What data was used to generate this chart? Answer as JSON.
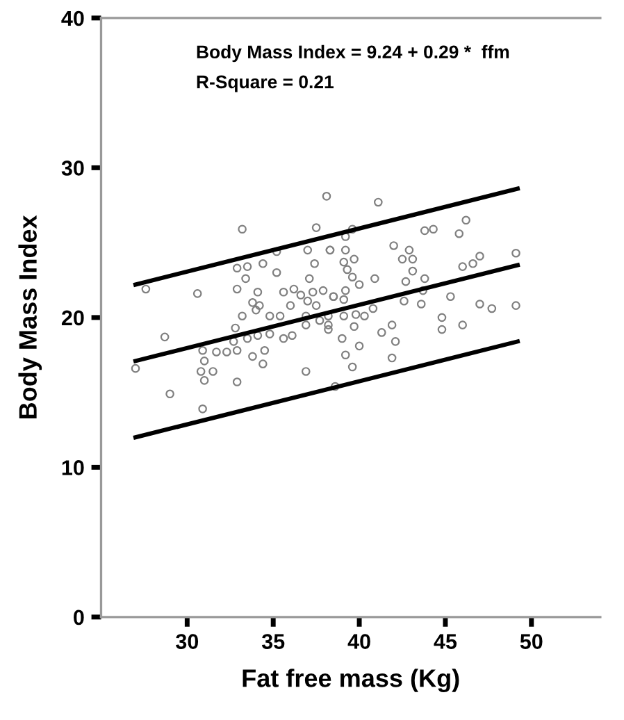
{
  "chart_data": {
    "type": "scatter",
    "xlabel": "Fat free mass (Kg)",
    "ylabel": "Body Mass Index",
    "annotations": [
      "Body Mass Index = 9.24 + 0.29 *  ffm",
      "R-Square = 0.21"
    ],
    "xlim": [
      25,
      54
    ],
    "ylim": [
      0,
      40
    ],
    "xticks": [
      30,
      35,
      40,
      45,
      50
    ],
    "yticks": [
      0,
      10,
      20,
      30,
      40
    ],
    "grid": false,
    "legend": false,
    "series": [
      {
        "color": "#808080",
        "marker": "circle",
        "x": [
          38.1,
          37.5,
          33.2,
          37.0,
          38.3,
          35.2,
          34.4,
          35.2,
          32.9,
          33.5,
          33.4,
          32.9,
          37.4,
          37.1,
          27.6,
          30.6,
          34.1,
          33.8,
          34.2,
          34.0,
          35.6,
          36.2,
          36.6,
          37.3,
          37.9,
          38.5,
          37.0,
          37.5,
          36.0,
          35.4,
          34.8,
          33.2,
          36.9,
          37.7,
          38.2,
          36.9,
          32.8,
          28.7,
          33.5,
          34.1,
          34.8,
          35.6,
          36.1,
          32.7,
          30.9,
          31.7,
          32.3,
          32.9,
          33.8,
          34.5,
          31.0,
          30.8,
          31.5,
          34.4,
          27.0,
          31.0,
          36.9,
          32.9,
          29.0,
          30.9,
          41.1,
          46.2,
          45.8,
          43.8,
          44.3,
          39.2,
          39.6,
          38.3,
          39.2,
          42.0,
          42.9,
          42.5,
          43.1,
          39.1,
          39.7,
          39.3,
          43.1,
          46.0,
          46.6,
          47.0,
          49.1,
          39.6,
          40.0,
          40.9,
          42.7,
          43.8,
          43.7,
          39.2,
          38.5,
          39.1,
          45.3,
          42.6,
          43.6,
          40.8,
          47.0,
          47.7,
          49.1,
          39.1,
          39.8,
          40.3,
          38.2,
          39.7,
          38.2,
          41.9,
          41.3,
          44.8,
          44.8,
          46.0,
          39.0,
          42.1,
          40.0,
          39.2,
          41.9,
          39.6,
          38.6
        ],
        "values": [
          28.1,
          26.0,
          25.9,
          24.5,
          24.5,
          24.4,
          23.6,
          23.0,
          23.3,
          23.4,
          22.6,
          21.9,
          23.6,
          22.6,
          21.9,
          21.6,
          21.7,
          21.0,
          20.8,
          20.5,
          21.7,
          21.9,
          21.5,
          21.7,
          21.8,
          21.4,
          21.1,
          20.8,
          20.8,
          20.1,
          20.1,
          20.1,
          20.1,
          19.8,
          19.5,
          19.5,
          19.3,
          18.7,
          18.6,
          18.8,
          18.9,
          18.6,
          18.8,
          18.4,
          17.8,
          17.7,
          17.7,
          17.8,
          17.4,
          17.8,
          17.1,
          16.4,
          16.4,
          16.9,
          16.6,
          15.8,
          16.4,
          15.7,
          14.9,
          13.9,
          27.7,
          26.5,
          25.6,
          25.8,
          25.9,
          25.4,
          25.9,
          24.5,
          24.5,
          24.8,
          24.5,
          23.9,
          23.9,
          23.7,
          23.9,
          23.2,
          23.1,
          23.4,
          23.6,
          24.1,
          24.3,
          22.7,
          22.2,
          22.6,
          22.4,
          22.6,
          21.8,
          21.8,
          21.4,
          21.2,
          21.4,
          21.1,
          20.9,
          20.6,
          20.9,
          20.6,
          20.8,
          20.1,
          20.2,
          20.1,
          20.1,
          19.4,
          19.2,
          19.5,
          19.0,
          20.0,
          19.2,
          19.5,
          18.6,
          18.4,
          18.1,
          17.5,
          17.3,
          16.7,
          15.4
        ]
      },
      {
        "type": "line",
        "color": "#000000",
        "x": [
          27,
          49.2
        ],
        "values": [
          22.2,
          28.6
        ],
        "marker": "none"
      },
      {
        "type": "line",
        "color": "#000000",
        "x": [
          27,
          49.2
        ],
        "values": [
          17.1,
          23.5
        ],
        "marker": "none"
      },
      {
        "type": "line",
        "color": "#000000",
        "x": [
          27,
          49.2
        ],
        "values": [
          12.0,
          18.4
        ],
        "marker": "none"
      }
    ]
  }
}
